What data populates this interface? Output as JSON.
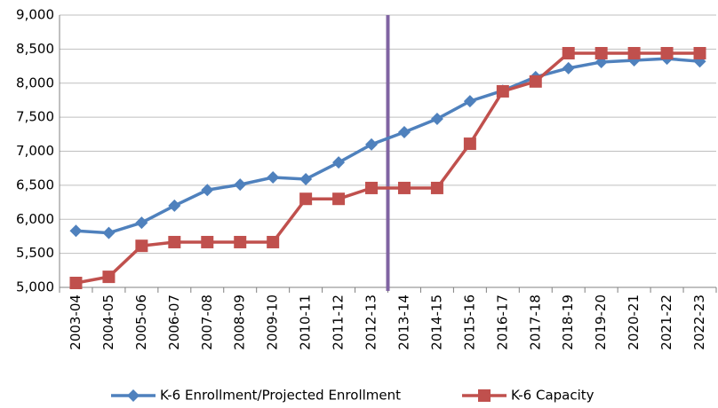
{
  "chart_data": {
    "type": "line",
    "categories": [
      "2003-04",
      "2004-05",
      "2005-06",
      "2006-07",
      "2007-08",
      "2008-09",
      "2009-10",
      "2010-11",
      "2011-12",
      "2012-13",
      "2013-14",
      "2014-15",
      "2015-16",
      "2016-17",
      "2017-18",
      "2018-19",
      "2019-20",
      "2020-21",
      "2021-22",
      "2022-23"
    ],
    "series": [
      {
        "name": "K-6 Enrollment/Projected Enrollment",
        "color": "#4f81bd",
        "marker": "diamond",
        "values": [
          5830,
          5800,
          5950,
          6200,
          6430,
          6510,
          6615,
          6590,
          6835,
          7100,
          7280,
          7475,
          7735,
          7890,
          8090,
          8220,
          8310,
          8335,
          8360,
          8320
        ]
      },
      {
        "name": "K-6 Capacity",
        "color": "#c0504d",
        "marker": "square",
        "values": [
          5065,
          5155,
          5610,
          5665,
          5665,
          5665,
          5665,
          6300,
          6300,
          6460,
          6460,
          6460,
          7110,
          7880,
          8025,
          8440,
          8440,
          8440,
          8440,
          8440
        ]
      }
    ],
    "ylim": [
      5000,
      9000
    ],
    "yticks": [
      {
        "value": 5000,
        "label": "5,000"
      },
      {
        "value": 5500,
        "label": "5,500"
      },
      {
        "value": 6000,
        "label": "6,000"
      },
      {
        "value": 6500,
        "label": "6,500"
      },
      {
        "value": 7000,
        "label": "7,000"
      },
      {
        "value": 7500,
        "label": "7,500"
      },
      {
        "value": 8000,
        "label": "8,000"
      },
      {
        "value": 8500,
        "label": "8,500"
      },
      {
        "value": 9000,
        "label": "9,000"
      }
    ],
    "grid": true,
    "legend": "bottom"
  }
}
